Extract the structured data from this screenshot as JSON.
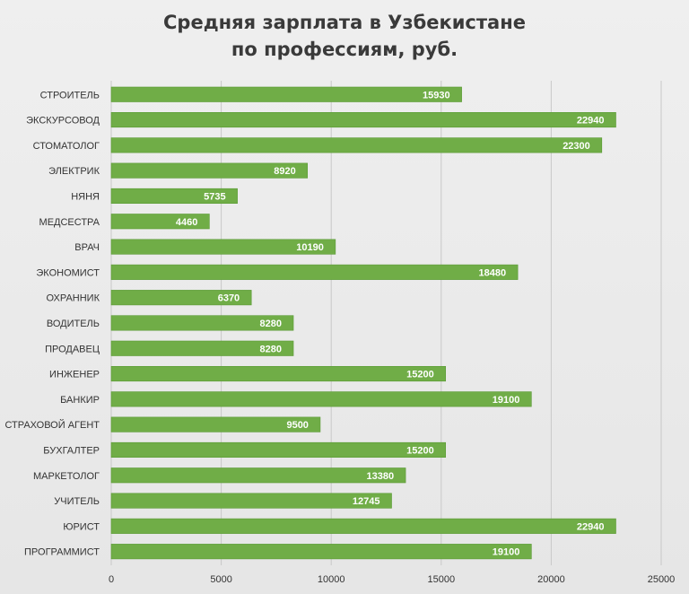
{
  "chart_data": {
    "type": "bar",
    "orientation": "horizontal",
    "title_lines": [
      "Средняя зарплата в Узбекистане",
      "по профессиям, руб."
    ],
    "categories": [
      "СТРОИТЕЛЬ",
      "ЭКСКУРСОВОД",
      "СТОМАТОЛОГ",
      "ЭЛЕКТРИК",
      "НЯНЯ",
      "МЕДСЕСТРА",
      "ВРАЧ",
      "ЭКОНОМИСТ",
      "ОХРАННИК",
      "ВОДИТЕЛЬ",
      "ПРОДАВЕЦ",
      "ИНЖЕНЕР",
      "БАНКИР",
      "СТРАХОВОЙ АГЕНТ",
      "БУХГАЛТЕР",
      "МАРКЕТОЛОГ",
      "УЧИТЕЛЬ",
      "ЮРИСТ",
      "ПРОГРАММИСТ"
    ],
    "values": [
      15930,
      22940,
      22300,
      8920,
      5735,
      4460,
      10190,
      18480,
      6370,
      8280,
      8280,
      15200,
      19100,
      9500,
      15200,
      13380,
      12745,
      22940,
      19100
    ],
    "data_labels": [
      "15930",
      "22940",
      "22300",
      "8920",
      "5735",
      "4460",
      "10190",
      "18480",
      "6370",
      "8280",
      "8280",
      "15200",
      "19100",
      "9500",
      "15200",
      "13380",
      "12745",
      "22940",
      "19100"
    ],
    "xlim": [
      0,
      25000
    ],
    "x_ticks": [
      0,
      5000,
      10000,
      15000,
      20000,
      25000
    ],
    "x_tick_labels": [
      "0",
      "5000",
      "10000",
      "15000",
      "20000",
      "25000"
    ],
    "grid": "vertical",
    "legend": "none",
    "colors": {
      "bar": "#70ad47",
      "bar_edge": "#5a9a35",
      "gridline": "#c8c8c8",
      "label_text": "#333333",
      "value_text": "#ffffff",
      "title_text": "#3a3a3a"
    }
  }
}
